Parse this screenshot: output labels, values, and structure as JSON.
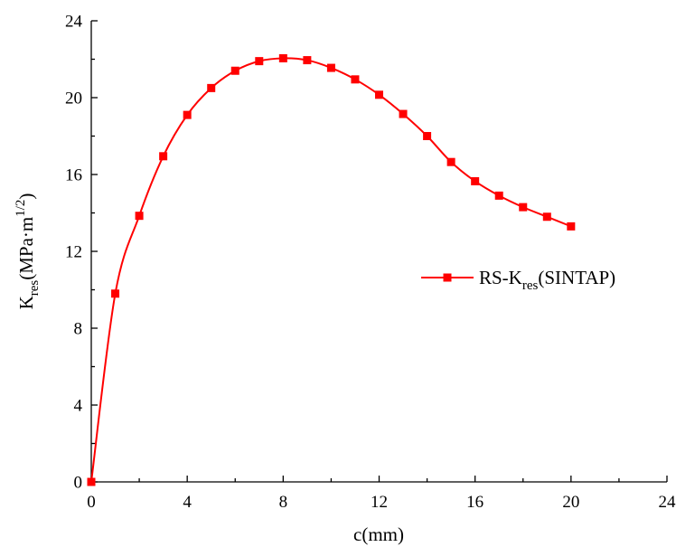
{
  "chart_data": {
    "type": "line",
    "title": "",
    "xlabel": "c(mm)",
    "ylabel": {
      "main": "K",
      "sub": "res",
      "unit_open": "(MPa·m",
      "unit_sup": "1/2",
      "unit_close": ")"
    },
    "xlim": [
      0,
      24
    ],
    "ylim": [
      0,
      24
    ],
    "xticks": [
      "0",
      "4",
      "8",
      "12",
      "16",
      "20",
      "24"
    ],
    "yticks": [
      "0",
      "4",
      "8",
      "12",
      "16",
      "20",
      "24"
    ],
    "grid": false,
    "legend_position": "right",
    "series": [
      {
        "name": {
          "prefix": "RS-K",
          "sub": "res",
          "suffix": "(SINTAP)"
        },
        "color": "#ff0000",
        "marker": "square",
        "x": [
          0,
          1,
          2,
          3,
          4,
          5,
          6,
          7,
          8,
          9,
          10,
          11,
          12,
          13,
          14,
          15,
          16,
          17,
          18,
          19,
          20
        ],
        "y": [
          0,
          9.8,
          13.85,
          16.95,
          19.1,
          20.5,
          21.4,
          21.9,
          22.05,
          21.95,
          21.55,
          20.95,
          20.15,
          19.15,
          18.0,
          16.65,
          15.65,
          14.9,
          14.3,
          13.8,
          13.3
        ]
      }
    ]
  }
}
